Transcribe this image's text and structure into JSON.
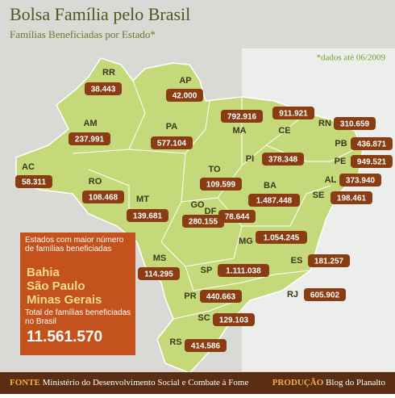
{
  "header": {
    "title": "Bolsa Família pelo Brasil",
    "subtitle": "Famílias Beneficiadas por Estado*",
    "note": "*dados até 06/2009"
  },
  "states": [
    {
      "abbr": "RR",
      "value": "38.443"
    },
    {
      "abbr": "AP",
      "value": "42.000"
    },
    {
      "abbr": "AM",
      "value": "237.991"
    },
    {
      "abbr": "PA",
      "value": "577.104"
    },
    {
      "abbr": "MA",
      "value": "792.916"
    },
    {
      "abbr": "CE",
      "value": "911.921"
    },
    {
      "abbr": "RN",
      "value": "310.659"
    },
    {
      "abbr": "PB",
      "value": "436.871"
    },
    {
      "abbr": "PE",
      "value": "949.521"
    },
    {
      "abbr": "AL",
      "value": "373.940"
    },
    {
      "abbr": "SE",
      "value": "198.461"
    },
    {
      "abbr": "PI",
      "value": "378.348"
    },
    {
      "abbr": "AC",
      "value": "58.311"
    },
    {
      "abbr": "RO",
      "value": "108.468"
    },
    {
      "abbr": "TO",
      "value": "109.599"
    },
    {
      "abbr": "BA",
      "value": "1.487.448"
    },
    {
      "abbr": "MT",
      "value": "139.681"
    },
    {
      "abbr": "GO",
      "value": "280.155"
    },
    {
      "abbr": "DF",
      "value": "78.644"
    },
    {
      "abbr": "MG",
      "value": "1.054.245"
    },
    {
      "abbr": "MS",
      "value": "114.295"
    },
    {
      "abbr": "ES",
      "value": "181.257"
    },
    {
      "abbr": "SP",
      "value": "1.111.038"
    },
    {
      "abbr": "RJ",
      "value": "605.902"
    },
    {
      "abbr": "PR",
      "value": "440.663"
    },
    {
      "abbr": "SC",
      "value": "129.103"
    },
    {
      "abbr": "RS",
      "value": "414.586"
    }
  ],
  "box": {
    "heading": "Estados com maior número de famílias beneficiadas",
    "top": [
      "Bahia",
      "São Paulo",
      "Minas Gerais"
    ],
    "total_label": "Total de famílias beneficiadas no Brasil",
    "total": "11.561.570"
  },
  "footer": {
    "source_label": "FONTE",
    "source": "Ministério do Desenvolvimento Social e Combate à Fome",
    "credit_label": "PRODUÇÃO",
    "credit": "Blog do Planalto"
  }
}
